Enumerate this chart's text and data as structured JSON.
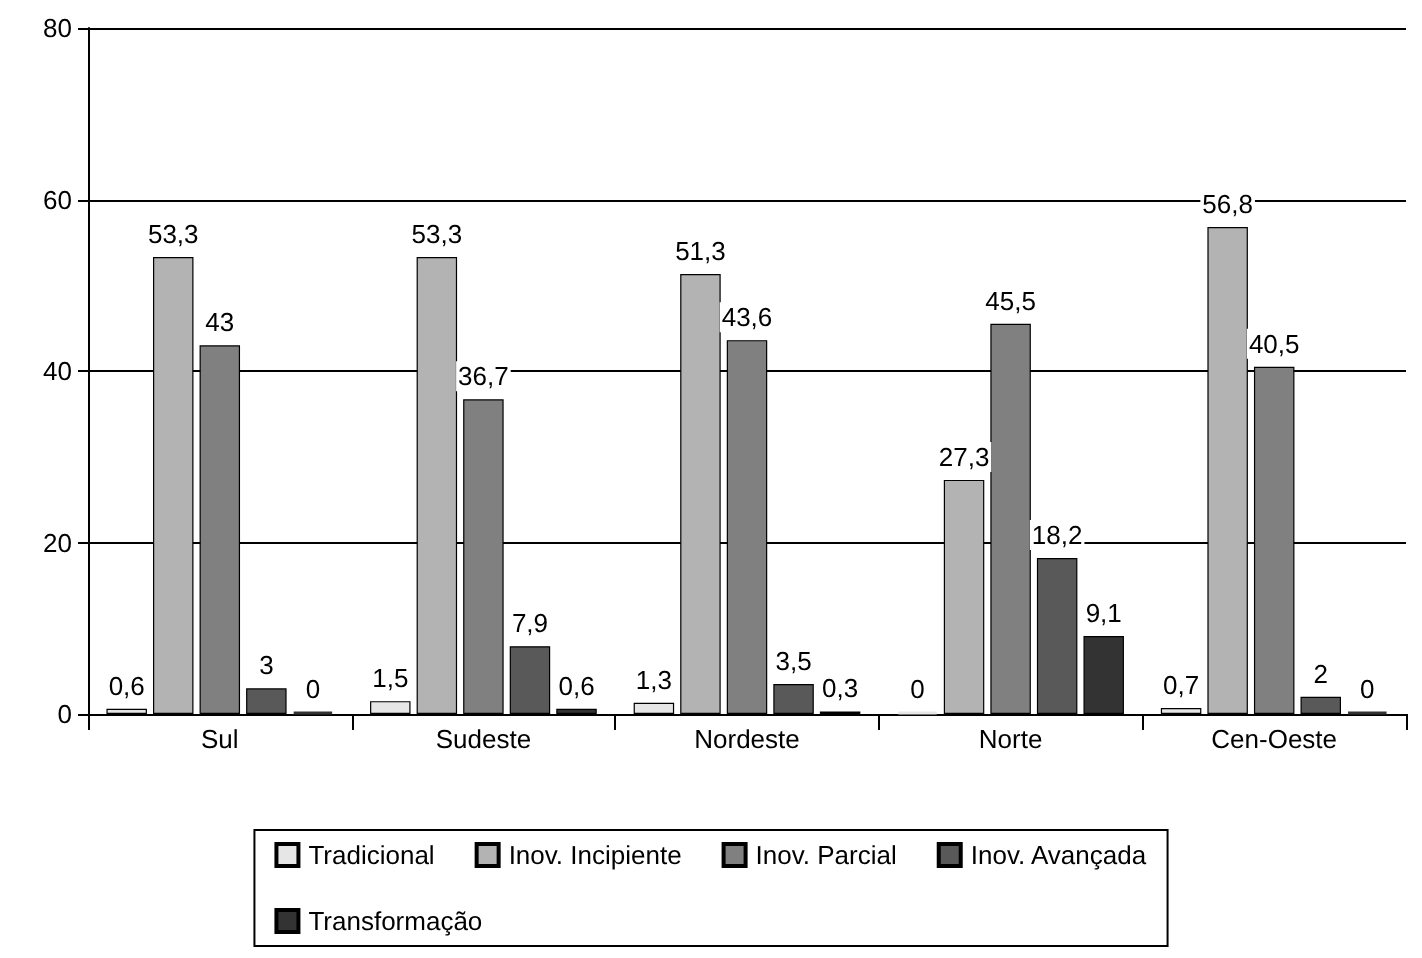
{
  "chart_data": {
    "type": "bar",
    "categories": [
      "Sul",
      "Sudeste",
      "Nordeste",
      "Norte",
      "Cen-Oeste"
    ],
    "series": [
      {
        "name": "Tradicional",
        "color": "#e6e6e6",
        "values": [
          0.6,
          1.5,
          1.3,
          0,
          0.7
        ],
        "value_labels": [
          "0,6",
          "1,5",
          "1,3",
          "0",
          "0,7"
        ]
      },
      {
        "name": "Inov. Incipiente",
        "color": "#b3b3b3",
        "values": [
          53.3,
          53.3,
          51.3,
          27.3,
          56.8
        ],
        "value_labels": [
          "53,3",
          "53,3",
          "51,3",
          "27,3",
          "56,8"
        ]
      },
      {
        "name": "Inov. Parcial",
        "color": "#808080",
        "values": [
          43,
          36.7,
          43.6,
          45.5,
          40.5
        ],
        "value_labels": [
          "43",
          "36,7",
          "43,6",
          "45,5",
          "40,5"
        ]
      },
      {
        "name": "Inov. Avançada",
        "color": "#595959",
        "values": [
          3,
          7.9,
          3.5,
          18.2,
          2
        ],
        "value_labels": [
          "3",
          "7,9",
          "3,5",
          "18,2",
          "2"
        ]
      },
      {
        "name": "Transformação",
        "color": "#333333",
        "values": [
          0,
          0.6,
          0.3,
          9.1,
          0
        ],
        "value_labels": [
          "0",
          "0,6",
          "0,3",
          "9,1",
          "0"
        ]
      }
    ],
    "ylim": [
      0,
      80
    ],
    "yticks": [
      0,
      20,
      40,
      60,
      80
    ],
    "grid": "y",
    "legend": "bottom"
  }
}
